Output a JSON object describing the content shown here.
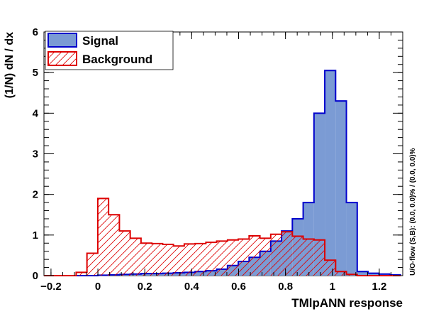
{
  "chart_data": {
    "type": "histogram",
    "xlabel": "TMlpANN response",
    "ylabel": "(1/N) dN / dx",
    "side_label": "U/O-flow (S,B): (0.0, 0.0)% / (0.0, 0.0)%",
    "xlim": [
      -0.23,
      1.3
    ],
    "ylim": [
      0,
      6
    ],
    "x_ticks": [
      -0.2,
      0,
      0.2,
      0.4,
      0.6,
      0.8,
      1,
      1.2
    ],
    "y_ticks": [
      0,
      1,
      2,
      3,
      4,
      5,
      6
    ],
    "x_tick_labels": [
      "−0.2",
      "0",
      "0.2",
      "0.4",
      "0.6",
      "0.8",
      "1",
      "1.2"
    ],
    "y_tick_labels": [
      "0",
      "1",
      "2",
      "3",
      "4",
      "5",
      "6"
    ],
    "bin_edges": [
      -0.23,
      -0.1849,
      -0.1388,
      -0.0927,
      -0.0466,
      -0.0005,
      0.0456,
      0.0917,
      0.1378,
      0.1839,
      0.23,
      0.2761,
      0.3222,
      0.3683,
      0.4144,
      0.4605,
      0.5066,
      0.5527,
      0.5988,
      0.6449,
      0.691,
      0.7371,
      0.7832,
      0.8293,
      0.8754,
      0.9215,
      0.9676,
      1.0137,
      1.0598,
      1.1059,
      1.152,
      1.1981,
      1.2442,
      1.2903
    ],
    "legend": {
      "position": "top-left",
      "entries": [
        "Signal",
        "Background"
      ]
    },
    "series": [
      {
        "name": "Signal",
        "color": "#0000cc",
        "fill": "#7b9bd4",
        "style": "solid",
        "values": [
          0,
          0,
          0,
          0,
          0,
          0.01,
          0.02,
          0.03,
          0.04,
          0.05,
          0.05,
          0.06,
          0.07,
          0.08,
          0.1,
          0.12,
          0.16,
          0.25,
          0.35,
          0.45,
          0.6,
          0.85,
          1.1,
          1.4,
          1.8,
          4.0,
          5.05,
          4.3,
          1.8,
          0.1,
          0.06,
          0.04,
          0.02
        ]
      },
      {
        "name": "Background",
        "color": "#dd0000",
        "fill": "none",
        "style": "hatched",
        "values": [
          0,
          0,
          0,
          0.08,
          0.55,
          1.9,
          1.5,
          1.1,
          0.92,
          0.8,
          0.79,
          0.77,
          0.73,
          0.78,
          0.79,
          0.82,
          0.85,
          0.88,
          0.9,
          0.98,
          0.92,
          1.02,
          1.08,
          0.97,
          0.9,
          0.88,
          0.38,
          0.1,
          0.03,
          0,
          0,
          0,
          0
        ]
      }
    ]
  }
}
